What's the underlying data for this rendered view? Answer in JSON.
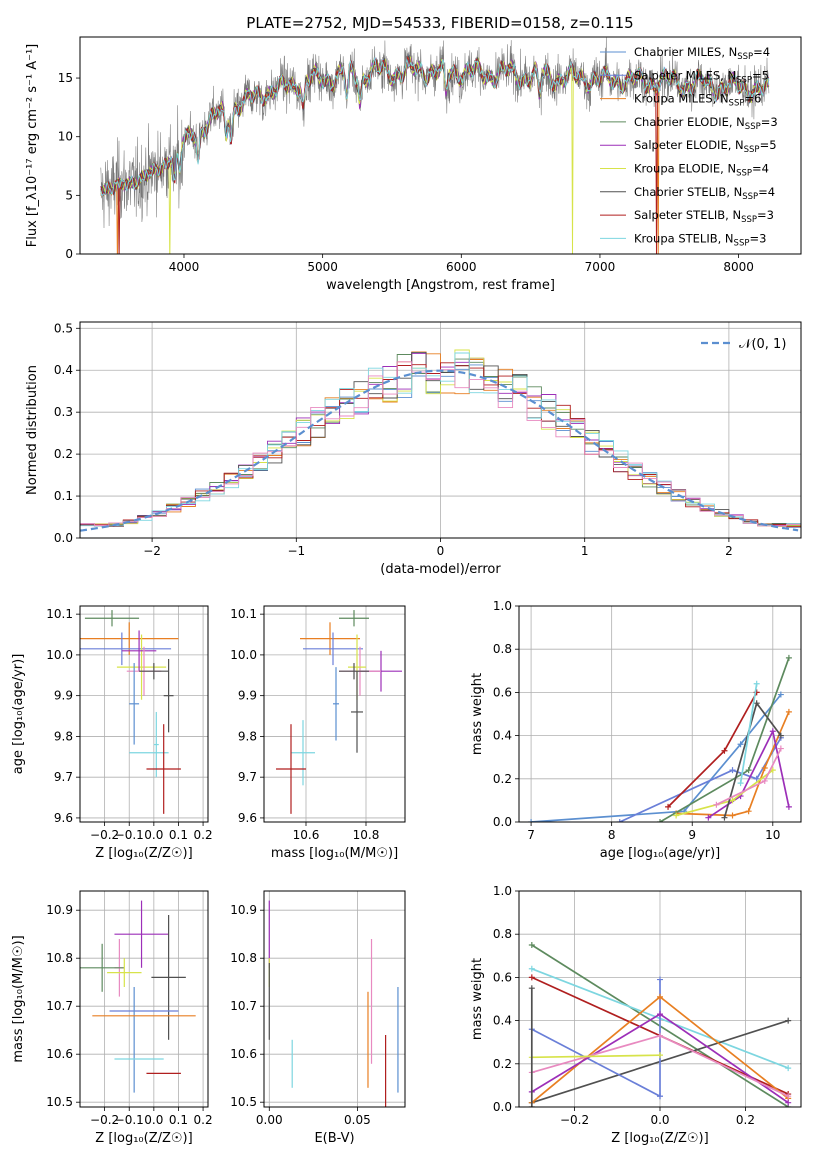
{
  "figure": {
    "title": "PLATE=2752, MJD=54533, FIBERID=0158, z=0.115",
    "colors": {
      "chabrier_miles": "#5b8fd0",
      "salpeter_miles": "#6a7fd8",
      "kroupa_miles": "#e87f22",
      "chabrier_elodie": "#5d8a5e",
      "salpeter_elodie": "#9c2fb8",
      "kroupa_elodie": "#d7e34a",
      "chabrier_stelib": "#505050",
      "salpeter_stelib": "#b01f1f",
      "kroupa_stelib": "#7dd6e0",
      "pink": "#e88ac0",
      "normal_curve": "#5b8fd0"
    }
  },
  "chart_data": [
    {
      "id": "spectrum",
      "type": "line",
      "xlabel": "wavelength [Angstrom, rest frame]",
      "ylabel": "Flux [f_λ10⁻¹⁷ erg cm⁻² s⁻¹ A⁻¹]",
      "xlim": [
        3250,
        8450
      ],
      "ylim": [
        0,
        18.5
      ],
      "xticks": [
        4000,
        5000,
        6000,
        7000,
        8000
      ],
      "yticks": [
        0,
        5,
        10,
        15
      ],
      "grid": false,
      "legend_position": "top-right",
      "continuum": {
        "x": [
          3400,
          3600,
          3800,
          4000,
          4200,
          4400,
          4600,
          4800,
          5000,
          5200,
          5400,
          5600,
          5800,
          6000,
          6200,
          6400,
          6600,
          6800,
          7000,
          7200,
          7400,
          7600,
          7800,
          8000,
          8200
        ],
        "y": [
          5.5,
          6.0,
          7.0,
          9.5,
          11.5,
          12.8,
          13.8,
          14.5,
          15.0,
          15.3,
          15.5,
          15.6,
          15.6,
          15.5,
          15.4,
          15.3,
          15.2,
          15.0,
          14.9,
          14.8,
          14.7,
          14.6,
          14.4,
          14.2,
          14.0
        ]
      },
      "series": [
        {
          "name": "Chabrier MILES, N_SSP=4",
          "label_main": "Chabrier MILES, N",
          "n": "4",
          "color_key": "chabrier_miles",
          "drops": []
        },
        {
          "name": "Salpeter MILES, N_SSP=5",
          "label_main": "Salpeter MILES, N",
          "n": "5",
          "color_key": "salpeter_miles",
          "drops": []
        },
        {
          "name": "Kroupa MILES, N_SSP=6",
          "label_main": "Kroupa MILES, N",
          "n": "6",
          "color_key": "kroupa_miles",
          "drops": [
            3520,
            7420
          ]
        },
        {
          "name": "Chabrier ELODIE, N_SSP=3",
          "label_main": "Chabrier ELODIE, N",
          "n": "3",
          "color_key": "chabrier_elodie",
          "drops": []
        },
        {
          "name": "Salpeter ELODIE, N_SSP=5",
          "label_main": "Salpeter ELODIE, N",
          "n": "5",
          "color_key": "salpeter_elodie",
          "drops": []
        },
        {
          "name": "Kroupa ELODIE, N_SSP=4",
          "label_main": "Kroupa ELODIE, N",
          "n": "4",
          "color_key": "kroupa_elodie",
          "drops": [
            3900,
            6800
          ]
        },
        {
          "name": "Chabrier STELIB, N_SSP=4",
          "label_main": "Chabrier STELIB, N",
          "n": "4",
          "color_key": "chabrier_stelib",
          "drops": []
        },
        {
          "name": "Salpeter STELIB, N_SSP=3",
          "label_main": "Salpeter STELIB, N",
          "n": "3",
          "color_key": "salpeter_stelib",
          "drops": [
            3530,
            7410
          ]
        },
        {
          "name": "Kroupa STELIB, N_SSP=3",
          "label_main": "Kroupa STELIB, N",
          "n": "3",
          "color_key": "kroupa_stelib",
          "drops": []
        }
      ]
    },
    {
      "id": "residuals",
      "type": "line",
      "xlabel": "(data-model)/error",
      "ylabel": "Normed distribution",
      "xlim": [
        -2.5,
        2.5
      ],
      "ylim": [
        0,
        0.515
      ],
      "xticks": [
        -2,
        -1,
        0,
        1,
        2
      ],
      "yticks": [
        0.0,
        0.1,
        0.2,
        0.3,
        0.4,
        0.5
      ],
      "grid": true,
      "legend": {
        "label": "𝒩(0, 1)",
        "position": "top-right"
      },
      "bin_width": 0.1,
      "series_colors": [
        "#5b8fd0",
        "#e87f22",
        "#5d8a5e",
        "#9c2fb8",
        "#d7e34a",
        "#505050",
        "#b01f1f",
        "#7dd6e0",
        "#e88ac0"
      ]
    },
    {
      "id": "age_vs_Z",
      "type": "scatter",
      "xlabel": "Z [log₁₀(Z/Z☉)]",
      "ylabel": "age  [log₁₀(age/yr)]",
      "xlim": [
        -0.3,
        0.22
      ],
      "ylim": [
        9.59,
        10.12
      ],
      "xticks": [
        -0.2,
        -0.1,
        0.0,
        0.1,
        0.2
      ],
      "yticks": [
        9.6,
        9.7,
        9.8,
        9.9,
        10.0,
        10.1
      ],
      "grid": true,
      "points": [
        {
          "x": -0.17,
          "y": 10.09,
          "xerr": 0.11,
          "yerr": 0.02,
          "color_key": "chabrier_elodie"
        },
        {
          "x": -0.1,
          "y": 10.04,
          "xerr": 0.2,
          "yerr": 0.04,
          "color_key": "kroupa_miles"
        },
        {
          "x": -0.13,
          "y": 10.015,
          "xerr": 0.2,
          "yerr": 0.04,
          "color_key": "salpeter_miles"
        },
        {
          "x": -0.05,
          "y": 9.97,
          "xerr": 0.1,
          "yerr": 0.08,
          "color_key": "kroupa_elodie"
        },
        {
          "x": -0.06,
          "y": 10.01,
          "xerr": 0.07,
          "yerr": 0.05,
          "color_key": "salpeter_elodie"
        },
        {
          "x": -0.04,
          "y": 9.96,
          "xerr": 0.07,
          "yerr": 0.06,
          "color_key": "pink"
        },
        {
          "x": -0.08,
          "y": 9.88,
          "xerr": 0.02,
          "yerr": 0.1,
          "color_key": "chabrier_miles"
        },
        {
          "x": 0.06,
          "y": 9.9,
          "xerr": 0.02,
          "yerr": 0.09,
          "color_key": "chabrier_stelib"
        },
        {
          "x": 0.0,
          "y": 9.96,
          "xerr": 0.06,
          "yerr": 0.02,
          "color_key": "chabrier_stelib"
        },
        {
          "x": 0.01,
          "y": 9.78,
          "xerr": 0.01,
          "yerr": 0.08,
          "color_key": "kroupa_stelib"
        },
        {
          "x": -0.02,
          "y": 9.76,
          "xerr": 0.08,
          "yerr": 0.0,
          "color_key": "kroupa_stelib"
        },
        {
          "x": 0.04,
          "y": 9.72,
          "xerr": 0.07,
          "yerr": 0.11,
          "color_key": "salpeter_stelib"
        }
      ]
    },
    {
      "id": "age_vs_mass",
      "type": "scatter",
      "xlabel": "mass [log₁₀(M/M☉)]",
      "ylabel": "",
      "xlim": [
        10.46,
        10.93
      ],
      "ylim": [
        9.59,
        10.12
      ],
      "xticks": [
        10.6,
        10.8
      ],
      "yticks": [
        9.6,
        9.7,
        9.8,
        9.9,
        10.0,
        10.1
      ],
      "grid": true,
      "points": [
        {
          "x": 10.76,
          "y": 10.09,
          "xerr": 0.05,
          "yerr": 0.02,
          "color_key": "chabrier_elodie"
        },
        {
          "x": 10.68,
          "y": 10.04,
          "xerr": 0.1,
          "yerr": 0.04,
          "color_key": "kroupa_miles"
        },
        {
          "x": 10.69,
          "y": 10.015,
          "xerr": 0.1,
          "yerr": 0.04,
          "color_key": "salpeter_miles"
        },
        {
          "x": 10.85,
          "y": 9.96,
          "xerr": 0.07,
          "yerr": 0.05,
          "color_key": "salpeter_elodie"
        },
        {
          "x": 10.78,
          "y": 9.96,
          "xerr": 0.07,
          "yerr": 0.06,
          "color_key": "pink"
        },
        {
          "x": 10.77,
          "y": 9.97,
          "xerr": 0.03,
          "yerr": 0.08,
          "color_key": "kroupa_elodie"
        },
        {
          "x": 10.7,
          "y": 9.88,
          "xerr": 0.01,
          "yerr": 0.09,
          "color_key": "chabrier_miles"
        },
        {
          "x": 10.76,
          "y": 9.96,
          "xerr": 0.05,
          "yerr": 0.02,
          "color_key": "chabrier_stelib"
        },
        {
          "x": 10.77,
          "y": 9.86,
          "xerr": 0.02,
          "yerr": 0.1,
          "color_key": "chabrier_stelib"
        },
        {
          "x": 10.59,
          "y": 9.76,
          "xerr": 0.04,
          "yerr": 0.08,
          "color_key": "kroupa_stelib"
        },
        {
          "x": 10.55,
          "y": 9.72,
          "xerr": 0.05,
          "yerr": 0.11,
          "color_key": "salpeter_stelib"
        }
      ]
    },
    {
      "id": "massweight_vs_age",
      "type": "line",
      "xlabel": "age  [log₁₀(age/yr)]",
      "ylabel": "mass weight",
      "xlim": [
        6.85,
        10.35
      ],
      "ylim": [
        0,
        1.0
      ],
      "xticks": [
        7,
        8,
        9,
        10
      ],
      "yticks": [
        0.0,
        0.2,
        0.4,
        0.6,
        0.8,
        1.0
      ],
      "grid": true,
      "series": [
        {
          "color_key": "chabrier_miles",
          "x": [
            7.0,
            8.9,
            9.6,
            10.1
          ],
          "y": [
            0.0,
            0.05,
            0.36,
            0.59
          ]
        },
        {
          "color_key": "salpeter_miles",
          "x": [
            8.1,
            9.5,
            9.8,
            10.1
          ],
          "y": [
            0.0,
            0.24,
            0.2,
            0.39
          ]
        },
        {
          "color_key": "kroupa_miles",
          "x": [
            8.8,
            9.5,
            9.7,
            9.9,
            10.2
          ],
          "y": [
            0.04,
            0.03,
            0.05,
            0.25,
            0.51
          ]
        },
        {
          "color_key": "chabrier_elodie",
          "x": [
            8.6,
            9.7,
            10.2
          ],
          "y": [
            0.0,
            0.24,
            0.76
          ]
        },
        {
          "color_key": "salpeter_elodie",
          "x": [
            9.2,
            9.6,
            10.0,
            10.2
          ],
          "y": [
            0.02,
            0.12,
            0.42,
            0.07
          ]
        },
        {
          "color_key": "kroupa_elodie",
          "x": [
            8.8,
            9.5,
            10.0
          ],
          "y": [
            0.03,
            0.1,
            0.24
          ]
        },
        {
          "color_key": "chabrier_stelib",
          "x": [
            9.4,
            9.8,
            10.1
          ],
          "y": [
            0.02,
            0.55,
            0.4
          ]
        },
        {
          "color_key": "salpeter_stelib",
          "x": [
            8.7,
            9.4,
            9.8
          ],
          "y": [
            0.07,
            0.33,
            0.6
          ]
        },
        {
          "color_key": "kroupa_stelib",
          "x": [
            9.6,
            9.8
          ],
          "y": [
            0.18,
            0.64
          ]
        },
        {
          "color_key": "pink",
          "x": [
            9.3,
            9.9,
            10.1
          ],
          "y": [
            0.08,
            0.19,
            0.34
          ]
        }
      ]
    },
    {
      "id": "mass_vs_Z",
      "type": "scatter",
      "xlabel": "Z [log₁₀(Z/Z☉)]",
      "ylabel": "mass [log₁₀(M/M☉)]",
      "xlim": [
        -0.3,
        0.22
      ],
      "ylim": [
        10.49,
        10.94
      ],
      "xticks": [
        -0.2,
        -0.1,
        0.0,
        0.1,
        0.2
      ],
      "yticks": [
        10.5,
        10.6,
        10.7,
        10.8,
        10.9
      ],
      "grid": true,
      "points": [
        {
          "x": -0.05,
          "y": 10.85,
          "xerr": 0.11,
          "yerr": 0.07,
          "color_key": "salpeter_elodie"
        },
        {
          "x": -0.14,
          "y": 10.78,
          "xerr": 0.02,
          "yerr": 0.06,
          "color_key": "pink"
        },
        {
          "x": -0.21,
          "y": 10.78,
          "xerr": 0.09,
          "yerr": 0.05,
          "color_key": "chabrier_elodie"
        },
        {
          "x": -0.12,
          "y": 10.77,
          "xerr": 0.07,
          "yerr": 0.03,
          "color_key": "kroupa_elodie"
        },
        {
          "x": 0.06,
          "y": 10.76,
          "xerr": 0.07,
          "yerr": 0.13,
          "color_key": "chabrier_stelib"
        },
        {
          "x": -0.04,
          "y": 10.69,
          "xerr": 0.14,
          "yerr": 0.0,
          "color_key": "salpeter_miles"
        },
        {
          "x": -0.08,
          "y": 10.63,
          "xerr": 0.0,
          "yerr": 0.11,
          "color_key": "chabrier_miles"
        },
        {
          "x": -0.04,
          "y": 10.68,
          "xerr": 0.21,
          "yerr": 0.0,
          "color_key": "kroupa_miles"
        },
        {
          "x": -0.06,
          "y": 10.59,
          "xerr": 0.1,
          "yerr": 0.0,
          "color_key": "kroupa_stelib"
        },
        {
          "x": 0.04,
          "y": 10.56,
          "xerr": 0.07,
          "yerr": 0.0,
          "color_key": "salpeter_stelib"
        }
      ]
    },
    {
      "id": "mass_vs_ebv",
      "type": "scatter",
      "xlabel": "E(B-V)",
      "ylabel": "",
      "xlim": [
        -0.003,
        0.077
      ],
      "ylim": [
        10.49,
        10.94
      ],
      "xticks": [
        0.0,
        0.05
      ],
      "yticks": [
        10.5,
        10.6,
        10.7,
        10.8,
        10.9
      ],
      "grid": true,
      "points": [
        {
          "x": 0.0,
          "y": 10.85,
          "xerr": 0,
          "yerr": 0.07,
          "color_key": "salpeter_elodie"
        },
        {
          "x": 0.0,
          "y": 10.77,
          "xerr": 0,
          "yerr": 0.03,
          "color_key": "kroupa_elodie"
        },
        {
          "x": 0.0,
          "y": 10.71,
          "xerr": 0,
          "yerr": 0.08,
          "color_key": "chabrier_stelib"
        },
        {
          "x": 0.013,
          "y": 10.58,
          "xerr": 0,
          "yerr": 0.05,
          "color_key": "kroupa_stelib"
        },
        {
          "x": 0.056,
          "y": 10.63,
          "xerr": 0,
          "yerr": 0.1,
          "color_key": "kroupa_miles"
        },
        {
          "x": 0.058,
          "y": 10.71,
          "xerr": 0,
          "yerr": 0.13,
          "color_key": "pink"
        },
        {
          "x": 0.066,
          "y": 10.56,
          "xerr": 0,
          "yerr": 0.08,
          "color_key": "salpeter_stelib"
        },
        {
          "x": 0.073,
          "y": 10.63,
          "xerr": 0,
          "yerr": 0.11,
          "color_key": "chabrier_miles"
        }
      ]
    },
    {
      "id": "massweight_vs_Z",
      "type": "line",
      "xlabel": "Z [log₁₀(Z/Z☉)]",
      "ylabel": "mass weight",
      "xlim": [
        -0.33,
        0.33
      ],
      "ylim": [
        0,
        1.0
      ],
      "xticks": [
        -0.2,
        0.0,
        0.2
      ],
      "yticks": [
        0.0,
        0.2,
        0.4,
        0.6,
        0.8,
        1.0
      ],
      "grid": true,
      "series": [
        {
          "color_key": "chabrier_elodie",
          "x": [
            -0.3,
            0.3
          ],
          "y": [
            0.75,
            0.0
          ]
        },
        {
          "color_key": "kroupa_stelib",
          "x": [
            -0.3,
            0.3
          ],
          "y": [
            0.64,
            0.18
          ]
        },
        {
          "color_key": "salpeter_stelib",
          "x": [
            -0.3,
            0.3
          ],
          "y": [
            0.6,
            0.06
          ]
        },
        {
          "color_key": "chabrier_stelib",
          "x": [
            -0.3,
            0.3
          ],
          "y": [
            0.02,
            0.4
          ]
        },
        {
          "color_key": "salpeter_miles",
          "x": [
            -0.3,
            0.0
          ],
          "y": [
            0.36,
            0.05
          ]
        },
        {
          "color_key": "salpeter_miles",
          "x": [
            0.0,
            0.0
          ],
          "y": [
            0.05,
            0.59
          ]
        },
        {
          "color_key": "kroupa_miles",
          "x": [
            -0.3,
            0.0,
            0.3
          ],
          "y": [
            0.02,
            0.51,
            0.04
          ]
        },
        {
          "color_key": "salpeter_elodie",
          "x": [
            -0.3,
            0.0,
            0.3
          ],
          "y": [
            0.07,
            0.43,
            0.02
          ]
        },
        {
          "color_key": "pink",
          "x": [
            -0.3,
            0.0,
            0.3
          ],
          "y": [
            0.16,
            0.33,
            0.05
          ]
        },
        {
          "color_key": "kroupa_elodie",
          "x": [
            -0.3,
            0.0
          ],
          "y": [
            0.23,
            0.24
          ]
        },
        {
          "color_key": "chabrier_stelib",
          "x": [
            -0.3,
            -0.3
          ],
          "y": [
            0.0,
            0.55
          ]
        }
      ]
    }
  ]
}
